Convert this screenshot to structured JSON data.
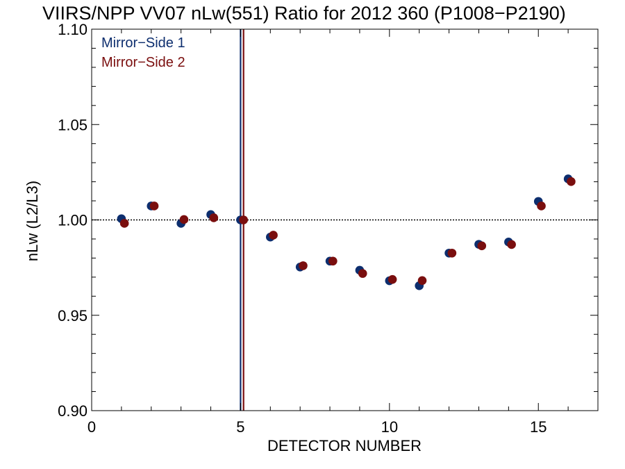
{
  "chart_data": {
    "type": "scatter",
    "title": "VIIRS/NPP VV07 nLw(551) Ratio for 2012 360 (P1008−P2190)",
    "xlabel": "DETECTOR NUMBER",
    "ylabel": "nLw (L2/L3)",
    "xlim": [
      0,
      17
    ],
    "ylim": [
      0.9,
      1.1
    ],
    "x_ticks": [
      0,
      5,
      10,
      15
    ],
    "x_tick_labels": [
      "0",
      "5",
      "10",
      "15"
    ],
    "y_ticks": [
      0.9,
      0.95,
      1.0,
      1.05,
      1.1
    ],
    "y_tick_labels": [
      "0.90",
      "0.95",
      "1.00",
      "1.05",
      "1.10"
    ],
    "grid": false,
    "legend_position": "top-left",
    "reference_line_y": 1.0,
    "series": [
      {
        "name": "Mirror−Side 1",
        "color": "#0d2e6e",
        "x": [
          1,
          2,
          3,
          4,
          5,
          6,
          7,
          8,
          9,
          10,
          11,
          12,
          13,
          14,
          15,
          16
        ],
        "y": [
          1.0006,
          1.0073,
          0.9982,
          1.0028,
          1.0,
          0.991,
          0.9753,
          0.9784,
          0.9736,
          0.9681,
          0.9655,
          0.9826,
          0.9872,
          0.9884,
          1.0097,
          1.0215
        ],
        "vline_x": 5.0
      },
      {
        "name": "Mirror−Side 2",
        "color": "#7a0e0e",
        "x": [
          1.1,
          2.1,
          3.1,
          4.1,
          5.1,
          6.1,
          7.1,
          8.1,
          9.1,
          10.1,
          11.1,
          12.1,
          13.1,
          14.1,
          15.1,
          16.1
        ],
        "y": [
          0.9982,
          1.0073,
          1.0002,
          1.0011,
          1.0,
          0.992,
          0.976,
          0.9784,
          0.9719,
          0.9688,
          0.9682,
          0.9826,
          0.9864,
          0.9871,
          1.0073,
          1.0201
        ],
        "vline_x": 5.1
      }
    ]
  }
}
